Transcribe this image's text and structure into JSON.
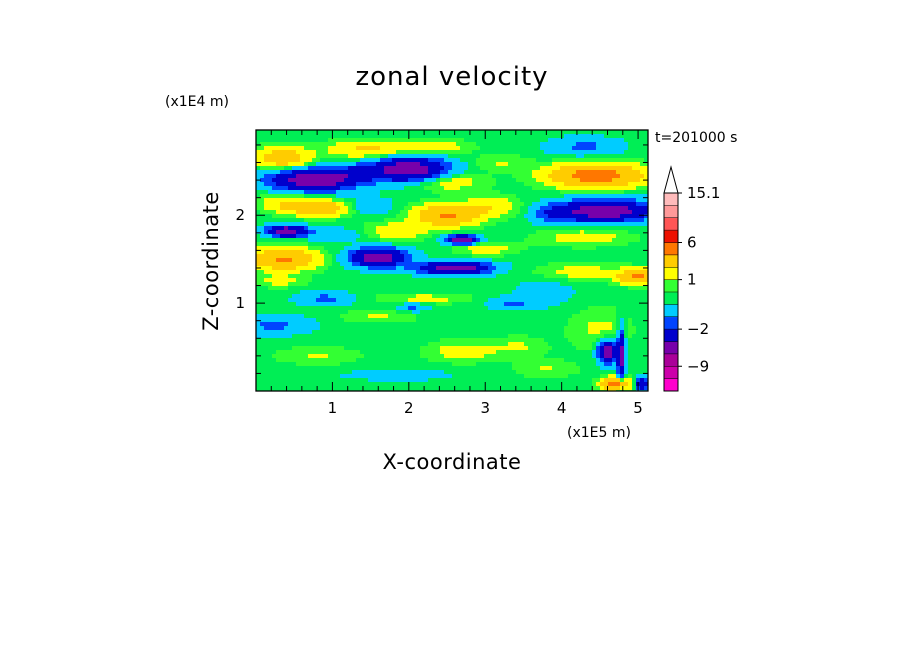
{
  "chart_data": {
    "type": "heatmap",
    "title": "zonal velocity",
    "xlabel": "X-coordinate",
    "ylabel": "Z-coordinate",
    "x_scale_label": "(x1E5 m)",
    "y_scale_label": "(x1E4 m)",
    "time_label": "t=201000 s",
    "xlim": [
      0,
      5.13
    ],
    "ylim": [
      0,
      2.97
    ],
    "x_ticks": [
      1,
      2,
      3,
      4,
      5
    ],
    "y_ticks": [
      1,
      2
    ],
    "x_tick_labels": [
      "1",
      "2",
      "3",
      "4",
      "5"
    ],
    "y_tick_labels": [
      "1",
      "2"
    ],
    "colorbar": {
      "labels": [
        {
          "value": 15.1,
          "text": "15.1"
        },
        {
          "value": 6,
          "text": "6"
        },
        {
          "value": 1,
          "text": "1"
        },
        {
          "value": -2,
          "text": "−2"
        },
        {
          "value": -9,
          "text": "−9"
        }
      ],
      "levels": [
        -15,
        -12,
        -9,
        -6,
        -4,
        -2,
        -1,
        0,
        0.5,
        1,
        2,
        4,
        6,
        9,
        12,
        15.1
      ],
      "colors": [
        "#ff00cc",
        "#cc00aa",
        "#aa0099",
        "#7700aa",
        "#0000cc",
        "#0044ff",
        "#00ccff",
        "#00ee55",
        "#33ff33",
        "#ffff00",
        "#ffcc00",
        "#ff7700",
        "#ee1100",
        "#ff5555",
        "#ff9999",
        "#ffbbbb"
      ],
      "overflow_arrow": "top"
    },
    "field": {
      "background_value": 0.25,
      "features": [
        {
          "x": 0.35,
          "z": 2.65,
          "sx": 0.35,
          "sz": 0.12,
          "v": 3
        },
        {
          "x": 1.45,
          "z": 2.75,
          "sx": 0.5,
          "sz": 0.1,
          "v": 2
        },
        {
          "x": 2.3,
          "z": 2.78,
          "sx": 0.45,
          "sz": 0.08,
          "v": 1.5
        },
        {
          "x": 4.3,
          "z": 2.78,
          "sx": 0.45,
          "sz": 0.1,
          "v": -1.5
        },
        {
          "x": 4.45,
          "z": 2.45,
          "sx": 0.6,
          "sz": 0.13,
          "v": 5
        },
        {
          "x": 0.75,
          "z": 2.4,
          "sx": 0.55,
          "sz": 0.12,
          "v": -6
        },
        {
          "x": 1.25,
          "z": 2.48,
          "sx": 0.35,
          "sz": 0.1,
          "v": -1.5
        },
        {
          "x": 2.0,
          "z": 2.52,
          "sx": 0.48,
          "sz": 0.13,
          "v": -6
        },
        {
          "x": 2.5,
          "z": 2.38,
          "sx": 0.45,
          "sz": 0.1,
          "v": 1.5
        },
        {
          "x": 3.2,
          "z": 2.6,
          "sx": 0.35,
          "sz": 0.1,
          "v": 0.8
        },
        {
          "x": 0.4,
          "z": 2.15,
          "sx": 0.35,
          "sz": 0.1,
          "v": 1.5
        },
        {
          "x": 0.85,
          "z": 2.08,
          "sx": 0.45,
          "sz": 0.09,
          "v": 3
        },
        {
          "x": 1.45,
          "z": 2.1,
          "sx": 0.3,
          "sz": 0.09,
          "v": -1.5
        },
        {
          "x": 2.5,
          "z": 2.0,
          "sx": 0.4,
          "sz": 0.12,
          "v": 4
        },
        {
          "x": 3.1,
          "z": 2.1,
          "sx": 0.35,
          "sz": 0.12,
          "v": 1.5
        },
        {
          "x": 4.55,
          "z": 2.05,
          "sx": 0.6,
          "sz": 0.12,
          "v": -6
        },
        {
          "x": 3.9,
          "z": 2.0,
          "sx": 0.25,
          "sz": 0.1,
          "v": -1.5
        },
        {
          "x": 0.4,
          "z": 1.82,
          "sx": 0.25,
          "sz": 0.06,
          "v": -6
        },
        {
          "x": 1.0,
          "z": 1.78,
          "sx": 0.35,
          "sz": 0.07,
          "v": -1.2
        },
        {
          "x": 1.85,
          "z": 1.82,
          "sx": 0.4,
          "sz": 0.1,
          "v": 1.5
        },
        {
          "x": 2.7,
          "z": 1.72,
          "sx": 0.2,
          "sz": 0.05,
          "v": -6
        },
        {
          "x": 4.3,
          "z": 1.75,
          "sx": 0.6,
          "sz": 0.1,
          "v": 1.2
        },
        {
          "x": 0.35,
          "z": 1.5,
          "sx": 0.45,
          "sz": 0.12,
          "v": 4
        },
        {
          "x": 1.6,
          "z": 1.52,
          "sx": 0.35,
          "sz": 0.1,
          "v": -6
        },
        {
          "x": 2.6,
          "z": 1.4,
          "sx": 0.45,
          "sz": 0.07,
          "v": -6
        },
        {
          "x": 3.0,
          "z": 1.62,
          "sx": 0.4,
          "sz": 0.08,
          "v": 1.2
        },
        {
          "x": 4.2,
          "z": 1.35,
          "sx": 0.6,
          "sz": 0.1,
          "v": 1.2
        },
        {
          "x": 5.0,
          "z": 1.3,
          "sx": 0.25,
          "sz": 0.08,
          "v": 4
        },
        {
          "x": 0.3,
          "z": 1.25,
          "sx": 0.35,
          "sz": 0.07,
          "v": 1.0
        },
        {
          "x": 0.9,
          "z": 1.05,
          "sx": 0.35,
          "sz": 0.08,
          "v": -1.5
        },
        {
          "x": 2.2,
          "z": 1.05,
          "sx": 0.6,
          "sz": 0.06,
          "v": 1.0
        },
        {
          "x": 3.35,
          "z": 1.0,
          "sx": 0.3,
          "sz": 0.06,
          "v": -1.5
        },
        {
          "x": 2.05,
          "z": 0.95,
          "sx": 0.2,
          "sz": 0.05,
          "v": -1.5
        },
        {
          "x": 0.25,
          "z": 0.75,
          "sx": 0.45,
          "sz": 0.1,
          "v": -1.5
        },
        {
          "x": 1.6,
          "z": 0.85,
          "sx": 0.5,
          "sz": 0.08,
          "v": 0.8
        },
        {
          "x": 0.8,
          "z": 0.4,
          "sx": 0.55,
          "sz": 0.1,
          "v": 0.8
        },
        {
          "x": 2.7,
          "z": 0.45,
          "sx": 0.45,
          "sz": 0.12,
          "v": 1.2
        },
        {
          "x": 3.45,
          "z": 0.5,
          "sx": 0.35,
          "sz": 0.12,
          "v": 0.8
        },
        {
          "x": 4.5,
          "z": 0.7,
          "sx": 0.4,
          "sz": 0.25,
          "v": 0.9
        },
        {
          "x": 4.6,
          "z": 0.45,
          "sx": 0.12,
          "sz": 0.12,
          "v": -6
        },
        {
          "x": 4.78,
          "z": 0.4,
          "sx": 0.05,
          "sz": 0.3,
          "v": -5
        },
        {
          "x": 4.7,
          "z": 0.08,
          "sx": 0.18,
          "sz": 0.07,
          "v": 5
        },
        {
          "x": 5.05,
          "z": 0.08,
          "sx": 0.08,
          "sz": 0.07,
          "v": -4
        },
        {
          "x": 1.85,
          "z": 0.18,
          "sx": 0.8,
          "sz": 0.07,
          "v": -0.6
        },
        {
          "x": 3.8,
          "z": 0.25,
          "sx": 0.4,
          "sz": 0.1,
          "v": 0.8
        },
        {
          "x": 3.8,
          "z": 1.15,
          "sx": 0.45,
          "sz": 0.2,
          "v": -0.6
        }
      ]
    }
  }
}
